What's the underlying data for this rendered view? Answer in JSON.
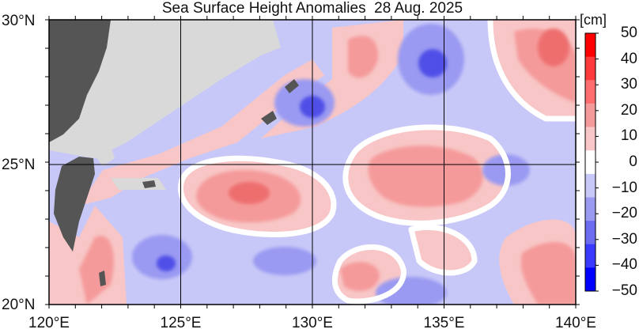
{
  "title": "Sea Surface Height Anomalies  28 Aug. 2025",
  "colorbar": {
    "unit": "[cm]",
    "ticks": [
      "50",
      "40",
      "30",
      "20",
      "10",
      "0",
      "−10",
      "−20",
      "−30",
      "−40",
      "−50"
    ],
    "values": [
      50,
      40,
      30,
      20,
      10,
      0,
      -10,
      -20,
      -30,
      -40,
      -50
    ],
    "colors": [
      "#ff0000",
      "#ff3a3a",
      "#ff6e6e",
      "#f59a9a",
      "#f8c6c6",
      "#ffffff",
      "#c8c8f8",
      "#9a9af2",
      "#6c6cf0",
      "#3a3aff",
      "#0000ff"
    ]
  },
  "axes": {
    "lat_labels": [
      "30°N",
      "25°N",
      "20°N"
    ],
    "lon_labels": [
      "120°E",
      "125°E",
      "130°E",
      "135°E",
      "140°E"
    ]
  },
  "map": {
    "extent": {
      "lon": [
        120,
        140
      ],
      "lat": [
        20,
        30
      ]
    },
    "land_color": "#555555",
    "coast_mask_color": "#d9d9d9"
  }
}
